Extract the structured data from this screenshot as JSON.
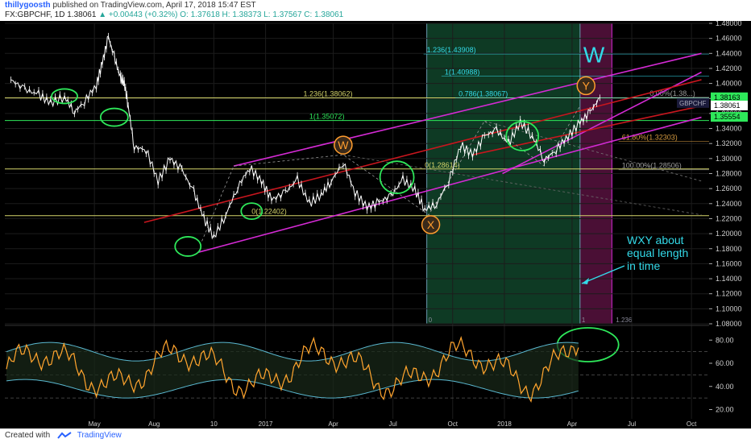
{
  "header": {
    "author": "thillygoosth",
    "published": "published on TradingView.com, April 17, 2018 15:47 EST",
    "symbol": "FX:GBPCHF, 1D",
    "last": "1.38061",
    "change": "+0.00443 (+0.32%)",
    "ohlc": "O: 1.37618  H: 1.38373  L: 1.37567  C: 1.38061"
  },
  "footer": {
    "created_with": "Created with",
    "brand": "TradingView"
  },
  "colors": {
    "background": "#000000",
    "grid": "#1c1c1c",
    "price": "#ffffff",
    "magenta": "#d42ad4",
    "red": "#c8161e",
    "cyan": "#33d9e8",
    "orange": "#ff9d2e",
    "green": "#2ee85a",
    "zone_green": "#0e3a24",
    "zone_magenta": "#4a0f35"
  },
  "chart_data": {
    "type": "line",
    "x_ticks": [
      "May",
      "Aug",
      "10",
      "2017",
      "Apr",
      "Jul",
      "Oct",
      "2018",
      "Apr",
      "Jul",
      "Oct"
    ],
    "x_tick_pos": [
      -2.0,
      1.0,
      4.0,
      6.6,
      10.0,
      13.0,
      16.0,
      18.6,
      22.0,
      25.0,
      28.0
    ],
    "y_axis": {
      "min": 1.08,
      "max": 1.48,
      "step": 0.02
    },
    "y_current": {
      "price": "1.38061",
      "top": "1.38163",
      "symbol": "GBPCHF",
      "green1": "1.35554"
    },
    "price_series": {
      "x": [
        -6.2,
        -5.5,
        -4.8,
        -4.2,
        -3.5,
        -3.0,
        -2.5,
        -1.9,
        -1.6,
        -1.3,
        -1.0,
        -0.7,
        -0.5,
        -0.3,
        0.0,
        0.6,
        1.2,
        1.8,
        2.4,
        3.0,
        3.5,
        4.0,
        4.6,
        5.2,
        5.8,
        6.4,
        6.9,
        7.6,
        8.2,
        8.8,
        9.4,
        9.9,
        10.5,
        11.1,
        11.7,
        12.3,
        12.9,
        13.5,
        14.1,
        14.6,
        15.2,
        15.8,
        16.4,
        17.0,
        17.6,
        18.2,
        18.8,
        19.4,
        20.0,
        20.6,
        21.2,
        21.8,
        22.4,
        22.9,
        23.4
      ],
      "y": [
        1.405,
        1.392,
        1.385,
        1.374,
        1.382,
        1.362,
        1.376,
        1.398,
        1.428,
        1.462,
        1.435,
        1.407,
        1.4,
        1.37,
        1.315,
        1.312,
        1.27,
        1.3,
        1.285,
        1.255,
        1.22,
        1.195,
        1.225,
        1.262,
        1.288,
        1.27,
        1.245,
        1.255,
        1.272,
        1.24,
        1.252,
        1.27,
        1.295,
        1.255,
        1.235,
        1.242,
        1.25,
        1.272,
        1.258,
        1.232,
        1.24,
        1.27,
        1.318,
        1.305,
        1.33,
        1.338,
        1.32,
        1.348,
        1.33,
        1.298,
        1.312,
        1.33,
        1.348,
        1.362,
        1.381
      ]
    },
    "hlines": [
      {
        "price": 1.3808,
        "color": "#d4d46a",
        "label": "1.236(1.38062)",
        "label_x": 8.5
      },
      {
        "price": 1.3507,
        "color": "#2ee85a",
        "label": "1(1.35072)",
        "label_x": 8.8
      },
      {
        "price": 1.224,
        "color": "#d4d46a",
        "label": "0(1.22402)",
        "label_x": 5.9
      },
      {
        "price": 1.2861,
        "color": "#d4d46a",
        "label": "0(1.28614)",
        "label_x": 14.6
      }
    ],
    "fib_labels": [
      {
        "text": "1.236(1.43908)",
        "x": 14.7,
        "y": 1.4391,
        "color": "#33d9e8"
      },
      {
        "text": "1(1.40988)",
        "x": 15.6,
        "y": 1.4099,
        "color": "#33d9e8"
      },
      {
        "text": "0.786(1.38067)",
        "x": 16.3,
        "y": 1.3807,
        "color": "#33d9e8"
      },
      {
        "text": "0.00%(1.38...)",
        "x": 25.9,
        "y": 1.3816,
        "color": "#9a9a9a"
      },
      {
        "text": "61.80%(1.32303)",
        "x": 24.5,
        "y": 1.323,
        "color": "#d49a40"
      },
      {
        "text": "100.00%(1.28506)",
        "x": 24.5,
        "y": 1.2851,
        "color": "#9a9a9a"
      }
    ],
    "trendlines": [
      {
        "color": "#d42ad4",
        "x1": 3.2,
        "y1": 1.175,
        "x2": 28.5,
        "y2": 1.355
      },
      {
        "color": "#d42ad4",
        "x1": 5.0,
        "y1": 1.29,
        "x2": 28.5,
        "y2": 1.44
      },
      {
        "color": "#d42ad4",
        "x1": 18.5,
        "y1": 1.28,
        "x2": 28.5,
        "y2": 1.415
      },
      {
        "color": "#c8161e",
        "x1": 0.5,
        "y1": 1.215,
        "x2": 28.5,
        "y2": 1.405
      },
      {
        "color": "#c8161e",
        "x1": 17.0,
        "y1": 1.305,
        "x2": 28.5,
        "y2": 1.37
      }
    ],
    "wave_labels": [
      {
        "text": "W",
        "x": 10.5,
        "y": 1.318
      },
      {
        "text": "X",
        "x": 14.9,
        "y": 1.212
      },
      {
        "text": "Y",
        "x": 22.7,
        "y": 1.397
      }
    ],
    "big_label": {
      "text": "W",
      "x": 23.1,
      "y": 1.428
    },
    "time_zones": [
      {
        "label": "0",
        "from": 14.7,
        "to": 22.4,
        "fill": "#0e3a24"
      },
      {
        "label": "1",
        "from": 22.4,
        "to": 24.0,
        "fill": "#4a0f35"
      },
      {
        "label": "1.236",
        "x": 24.2
      }
    ],
    "annotation": "WXY about equal length in time",
    "osc_axis": {
      "ticks": [
        80.0,
        60.0,
        40.0,
        20.0
      ],
      "min": 12,
      "max": 92,
      "guides": [
        70.0,
        50.0,
        30.0
      ]
    }
  }
}
